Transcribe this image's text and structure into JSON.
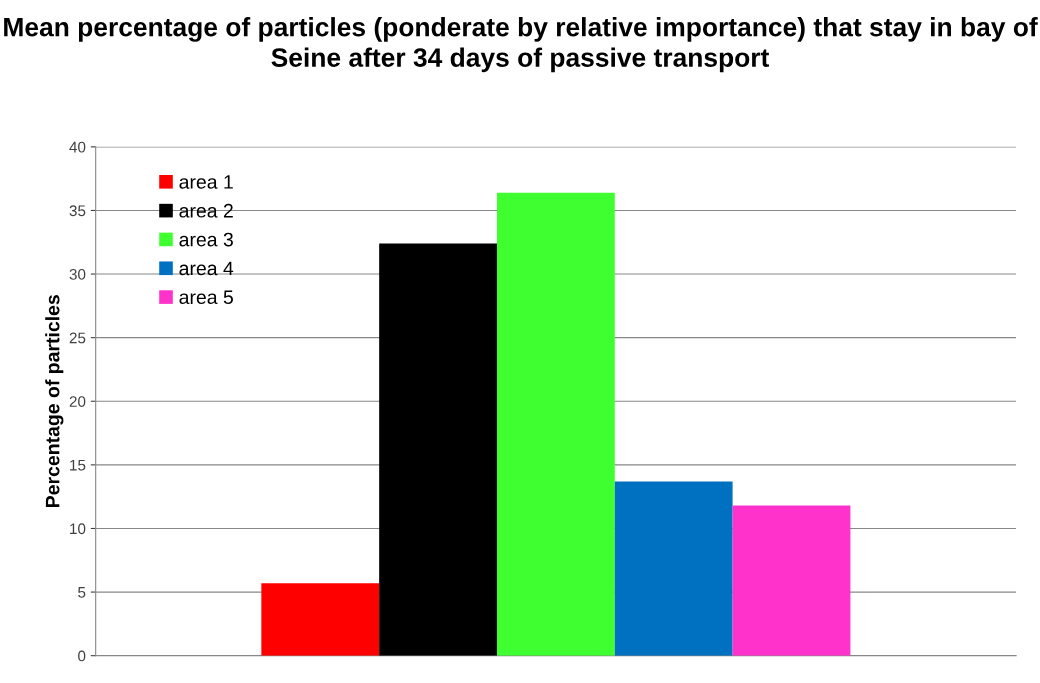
{
  "chart_data": {
    "type": "bar",
    "title": "Mean percentage of particles (ponderate by relative importance) that stay in bay of Seine after 34 days of passive transport",
    "ylabel": "Percentage of particles",
    "categories": [
      null
    ],
    "series": [
      {
        "name": "area 1",
        "color": "#ff0000",
        "values": [
          5.7
        ]
      },
      {
        "name": "area 2",
        "color": "#000000",
        "values": [
          32.4
        ]
      },
      {
        "name": "area 3",
        "color": "#40ff30",
        "values": [
          36.4
        ]
      },
      {
        "name": "area 4",
        "color": "#0070c0",
        "values": [
          13.7
        ]
      },
      {
        "name": "area 5",
        "color": "#ff33cc",
        "values": [
          11.8
        ]
      }
    ],
    "ylim": [
      0,
      40
    ],
    "yticks": [
      0,
      5,
      10,
      15,
      20,
      25,
      30,
      35,
      40
    ],
    "grid": "y",
    "legend": "top left"
  }
}
